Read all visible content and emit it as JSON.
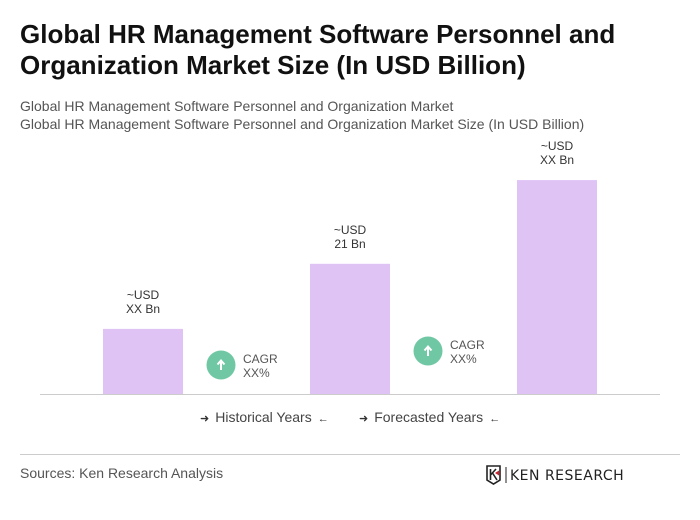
{
  "title": "Global HR Management Software Personnel and Organization Market Size (In USD Billion)",
  "subtitle_1": "Global HR Management Software Personnel and Organization Market",
  "subtitle_2": "Global HR Management Software Personnel and Organization Market Size (In USD Billion)",
  "chart_data": {
    "type": "bar",
    "title": "",
    "xlabel": "",
    "ylabel": "",
    "values": [
      10.5,
      21,
      34.5
    ],
    "data_labels": [
      [
        "~USD",
        "XX Bn"
      ],
      [
        "~USD",
        "21 Bn"
      ],
      [
        "~USD",
        "XX Bn"
      ]
    ],
    "bar_color": "#dfc3f5",
    "grid": false,
    "annotations": [
      {
        "label_1": "CAGR",
        "label_2": "XX%",
        "icon": "arrow-up-icon",
        "color": "#6fc8a3"
      },
      {
        "label_1": "CAGR",
        "label_2": "XX%",
        "icon": "arrow-up-icon",
        "color": "#6fc8a3"
      }
    ]
  },
  "legend": {
    "historical": "Historical Years",
    "forecasted": "Forecasted Years",
    "arrow_right": "➜",
    "arrow_left": "←"
  },
  "source": "Sources: Ken Research Analysis",
  "logo_text": "KEN RESEARCH"
}
